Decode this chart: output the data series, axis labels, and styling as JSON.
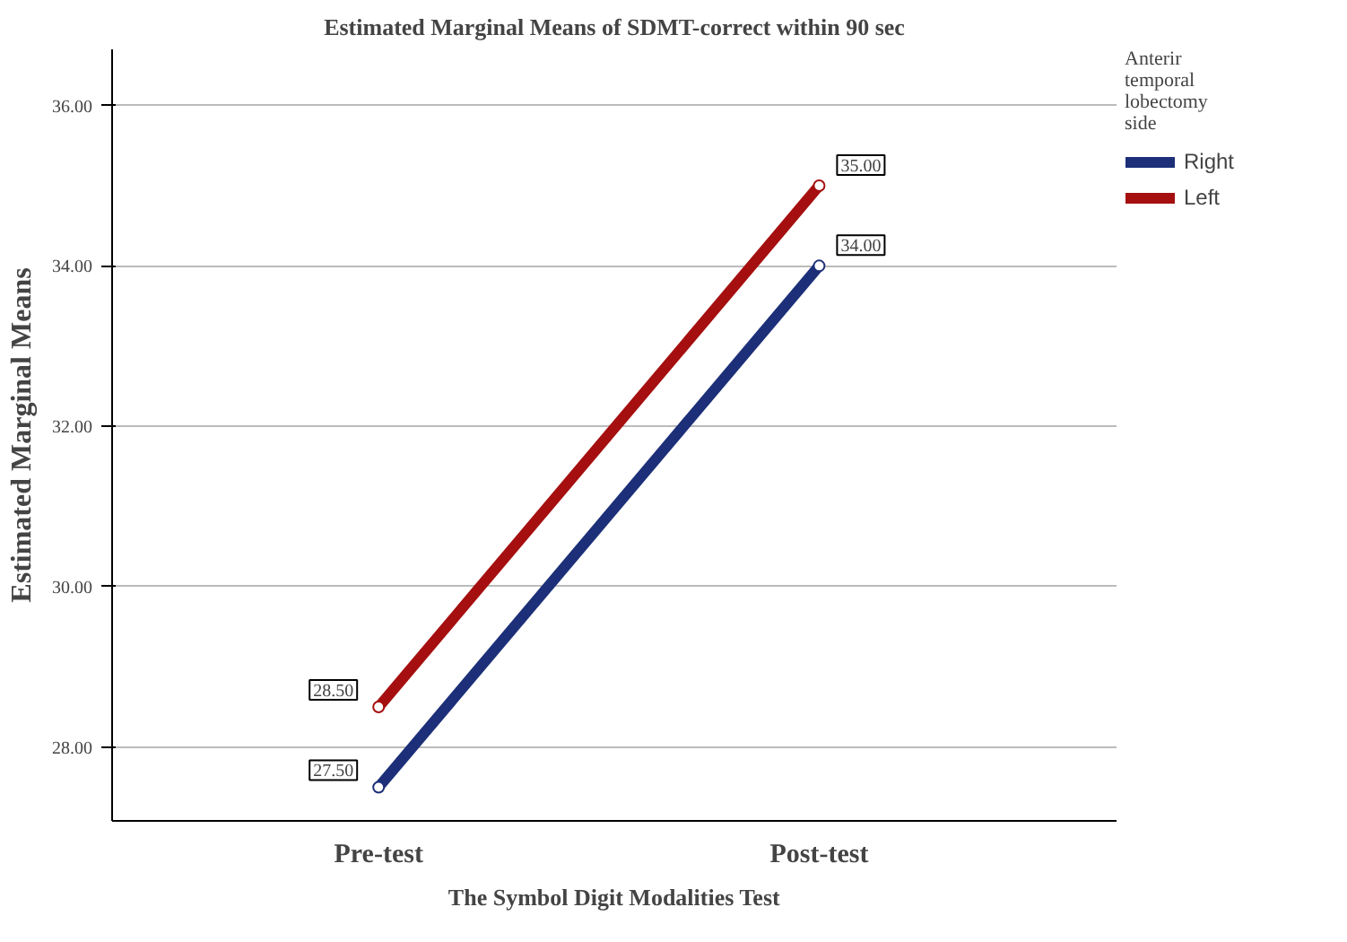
{
  "chart_data": {
    "type": "line",
    "title": "Estimated Marginal Means of SDMT-correct within 90 sec",
    "xlabel": "The Symbol Digit Modalities Test",
    "ylabel": "Estimated Marginal Means",
    "legend_title": "Anterir temporal lobectomy side",
    "categories": [
      "Pre-test",
      "Post-test"
    ],
    "series": [
      {
        "name": "Right",
        "color": "#1c2f78",
        "values": [
          27.5,
          34.0
        ],
        "value_labels": [
          "27.50",
          "34.00"
        ]
      },
      {
        "name": "Left",
        "color": "#a50f0f",
        "values": [
          28.5,
          35.0
        ],
        "value_labels": [
          "28.50",
          "35.00"
        ]
      }
    ],
    "ylim": [
      27.08,
      36.7
    ],
    "yticks": [
      {
        "value": 28,
        "label": "28.00"
      },
      {
        "value": 30,
        "label": "30.00"
      },
      {
        "value": 32,
        "label": "32.00"
      },
      {
        "value": 34,
        "label": "34.00"
      },
      {
        "value": 36,
        "label": "36.00"
      }
    ],
    "grid": "y",
    "legend": "right",
    "marker": "circle",
    "line_style": "solid"
  }
}
